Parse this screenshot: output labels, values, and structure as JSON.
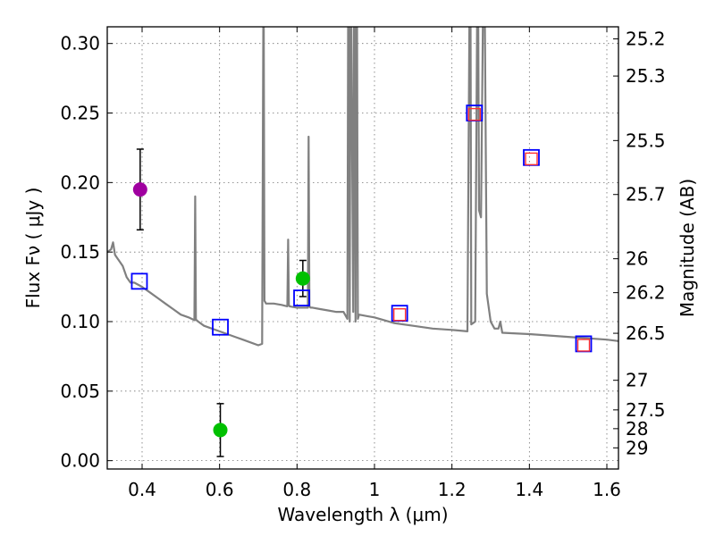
{
  "chart_data": {
    "type": "scatter",
    "xlabel": "Wavelength  λ (μm)",
    "ylabel": "Flux  Fν  ( μJy )",
    "ylabel_right": "Magnitude (AB)",
    "xlim": [
      0.31,
      1.63
    ],
    "ylim": [
      -0.006,
      0.312
    ],
    "grid": true,
    "x_ticks": [
      0.4,
      0.6,
      0.8,
      1.0,
      1.2,
      1.4,
      1.6
    ],
    "x_tick_labels": [
      "0.4",
      "0.6",
      "0.8",
      "1",
      "1.2",
      "1.4",
      "1.6"
    ],
    "y_ticks": [
      0.0,
      0.05,
      0.1,
      0.15,
      0.2,
      0.25,
      0.3
    ],
    "y_tick_labels": [
      "0.00",
      "0.05",
      "0.10",
      "0.15",
      "0.20",
      "0.25",
      "0.30"
    ],
    "right_ticks": [
      {
        "label": "25.2",
        "flux": 0.3033
      },
      {
        "label": "25.3",
        "flux": 0.2766
      },
      {
        "label": "25.5",
        "flux": 0.2302
      },
      {
        "label": "25.7",
        "flux": 0.1914
      },
      {
        "label": "26",
        "flux": 0.1452
      },
      {
        "label": "26.2",
        "flux": 0.1208
      },
      {
        "label": "26.5",
        "flux": 0.0916
      },
      {
        "label": "27",
        "flux": 0.0578
      },
      {
        "label": "27.5",
        "flux": 0.0365
      },
      {
        "label": "28",
        "flux": 0.023
      },
      {
        "label": "29",
        "flux": 0.0092
      }
    ],
    "model_spectrum": {
      "color": "#808080",
      "x": [
        0.31,
        0.32,
        0.325,
        0.33,
        0.335,
        0.34,
        0.35,
        0.36,
        0.37,
        0.38,
        0.4,
        0.42,
        0.44,
        0.46,
        0.48,
        0.5,
        0.52,
        0.535,
        0.537,
        0.539,
        0.541,
        0.545,
        0.56,
        0.58,
        0.6,
        0.62,
        0.64,
        0.66,
        0.68,
        0.7,
        0.71,
        0.713,
        0.714,
        0.716,
        0.718,
        0.72,
        0.74,
        0.76,
        0.775,
        0.777,
        0.779,
        0.781,
        0.8,
        0.82,
        0.828,
        0.83,
        0.832,
        0.835,
        0.84,
        0.86,
        0.88,
        0.9,
        0.92,
        0.93,
        0.932,
        0.934,
        0.936,
        0.938,
        0.94,
        0.945,
        0.947,
        0.949,
        0.951,
        0.953,
        0.955,
        0.957,
        0.96,
        0.98,
        1.0,
        1.05,
        1.1,
        1.15,
        1.2,
        1.24,
        1.245,
        1.248,
        1.25,
        1.26,
        1.265,
        1.268,
        1.27,
        1.275,
        1.28,
        1.285,
        1.29,
        1.3,
        1.31,
        1.32,
        1.325,
        1.33,
        1.4,
        1.5,
        1.6,
        1.63
      ],
      "y": [
        0.15,
        0.152,
        0.157,
        0.148,
        0.146,
        0.144,
        0.14,
        0.132,
        0.128,
        0.128,
        0.125,
        0.121,
        0.117,
        0.113,
        0.109,
        0.105,
        0.103,
        0.101,
        0.19,
        0.101,
        0.101,
        0.1,
        0.097,
        0.095,
        0.093,
        0.091,
        0.089,
        0.087,
        0.085,
        0.083,
        0.084,
        0.315,
        0.315,
        0.115,
        0.114,
        0.113,
        0.113,
        0.112,
        0.111,
        0.159,
        0.112,
        0.111,
        0.11,
        0.11,
        0.11,
        0.233,
        0.111,
        0.11,
        0.11,
        0.109,
        0.108,
        0.107,
        0.107,
        0.102,
        0.315,
        0.315,
        0.1,
        0.315,
        0.315,
        0.107,
        0.315,
        0.315,
        0.1,
        0.315,
        0.315,
        0.102,
        0.105,
        0.104,
        0.103,
        0.099,
        0.097,
        0.095,
        0.094,
        0.093,
        0.315,
        0.315,
        0.098,
        0.1,
        0.315,
        0.315,
        0.18,
        0.175,
        0.315,
        0.315,
        0.12,
        0.1,
        0.095,
        0.095,
        0.1,
        0.092,
        0.091,
        0.089,
        0.087,
        0.086
      ]
    },
    "series": [
      {
        "marker": "circle",
        "color": "#a000a0",
        "points": [
          {
            "x": 0.395,
            "y": 0.195,
            "yerr": 0.029
          }
        ]
      },
      {
        "marker": "circle",
        "color": "#00c000",
        "points": [
          {
            "x": 0.602,
            "y": 0.022,
            "yerr": 0.019
          },
          {
            "x": 0.815,
            "y": 0.131,
            "yerr": 0.013
          }
        ]
      },
      {
        "marker": "open-square",
        "color": "#0000ff",
        "points": [
          {
            "x": 0.393,
            "y": 0.129
          },
          {
            "x": 0.602,
            "y": 0.096
          },
          {
            "x": 0.812,
            "y": 0.117
          },
          {
            "x": 1.065,
            "y": 0.106
          },
          {
            "x": 1.258,
            "y": 0.25
          },
          {
            "x": 1.405,
            "y": 0.218
          },
          {
            "x": 1.54,
            "y": 0.084
          }
        ]
      },
      {
        "marker": "open-square",
        "color": "#ff3030",
        "points": [
          {
            "x": 1.065,
            "y": 0.105
          },
          {
            "x": 1.258,
            "y": 0.249
          },
          {
            "x": 1.405,
            "y": 0.217
          },
          {
            "x": 1.54,
            "y": 0.083
          }
        ]
      }
    ]
  }
}
